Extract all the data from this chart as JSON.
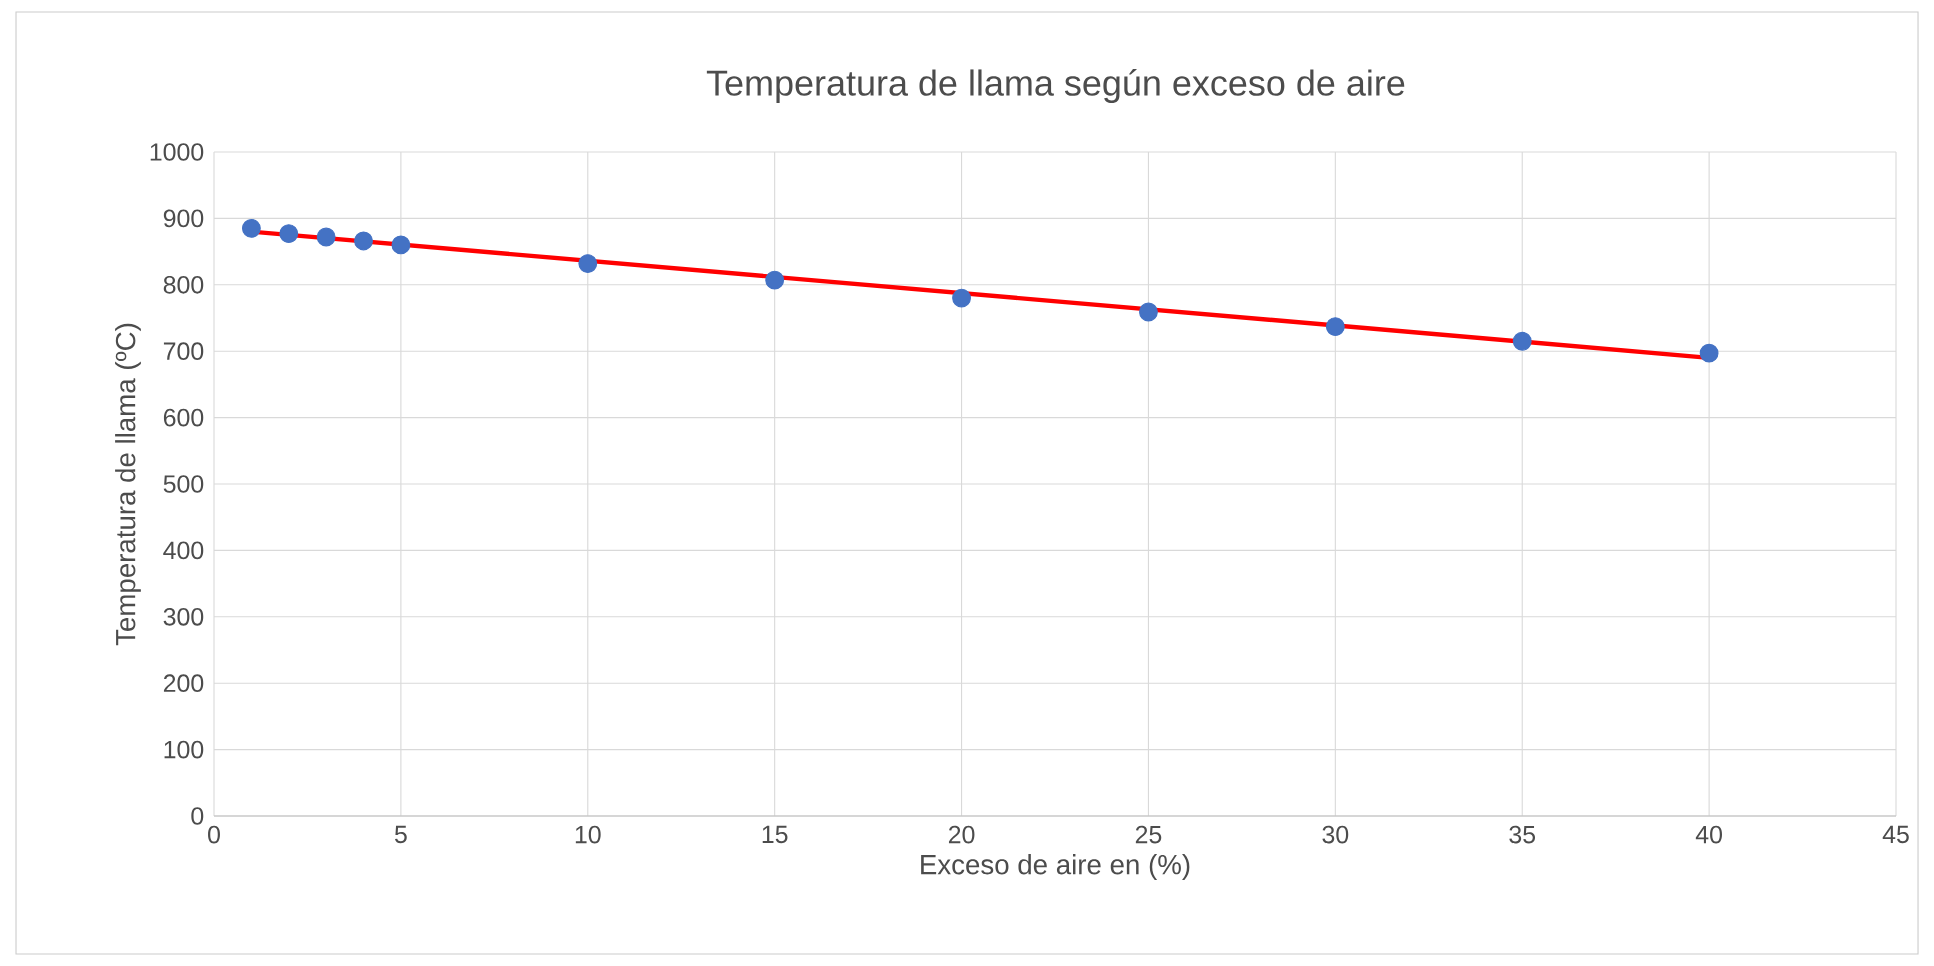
{
  "chart_data": {
    "type": "scatter",
    "title": "Temperatura de llama según exceso de aire",
    "xlabel": "Exceso de aire en (%)",
    "ylabel": "Temperatura de llama (ºC)",
    "xlim": [
      0,
      45
    ],
    "xticks": [
      0,
      5,
      10,
      15,
      20,
      25,
      30,
      35,
      40,
      45
    ],
    "ylim": [
      0,
      1000
    ],
    "yticks": [
      0,
      100,
      200,
      300,
      400,
      500,
      600,
      700,
      800,
      900,
      1000
    ],
    "grid": true,
    "series": [
      {
        "color": "#4472c4",
        "marker": "circle",
        "x": [
          1,
          2,
          3,
          4,
          5,
          10,
          15,
          20,
          25,
          30,
          35,
          40
        ],
        "values": [
          885,
          877,
          872,
          866,
          860,
          832,
          807,
          780,
          759,
          737,
          715,
          697
        ]
      },
      {
        "type": "line",
        "color": "#ff0000",
        "x": [
          1,
          40
        ],
        "values": [
          880,
          690
        ],
        "line_style": "solid",
        "marker": "none"
      }
    ]
  }
}
